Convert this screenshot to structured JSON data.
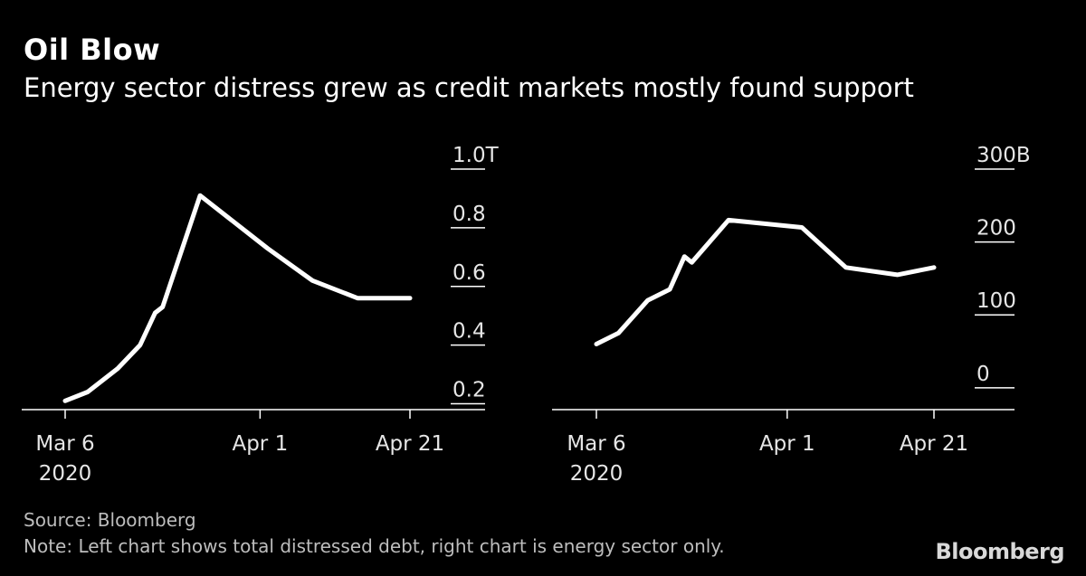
{
  "title": "Oil Blow",
  "subtitle": "Energy sector distress grew as credit markets mostly found support",
  "source": "Source: Bloomberg",
  "note": "Note: Left chart shows total distressed debt, right chart is energy sector only.",
  "logo": "Bloomberg",
  "colors": {
    "background": "#000000",
    "line": "#ffffff",
    "text": "#ffffff",
    "muted": "#bdbdbd"
  },
  "chart_data": [
    {
      "type": "line",
      "title": "",
      "xlabel": "",
      "ylabel": "",
      "grid": false,
      "y_axis_side": "right",
      "x_ticks": [
        {
          "date": "2020-03-06",
          "label": "Mar 6",
          "sublabel": "2020"
        },
        {
          "date": "2020-04-01",
          "label": "Apr 1",
          "sublabel": ""
        },
        {
          "date": "2020-04-21",
          "label": "Apr 21",
          "sublabel": ""
        }
      ],
      "y_ticks": [
        {
          "value": 0.2,
          "label": "0.2"
        },
        {
          "value": 0.4,
          "label": "0.4"
        },
        {
          "value": 0.6,
          "label": "0.6"
        },
        {
          "value": 0.8,
          "label": "0.8"
        },
        {
          "value": 1.0,
          "label": "1.0T"
        }
      ],
      "ylim": [
        0.18,
        1.0
      ],
      "xlim": [
        "2020-03-06",
        "2020-04-21"
      ],
      "series": [
        {
          "x": [
            "2020-03-06",
            "2020-03-09",
            "2020-03-13",
            "2020-03-16",
            "2020-03-18",
            "2020-03-19",
            "2020-03-24",
            "2020-04-02",
            "2020-04-08",
            "2020-04-14",
            "2020-04-21"
          ],
          "y": [
            0.21,
            0.24,
            0.32,
            0.4,
            0.51,
            0.53,
            0.91,
            0.73,
            0.62,
            0.56,
            0.56
          ]
        }
      ]
    },
    {
      "type": "line",
      "title": "",
      "xlabel": "",
      "ylabel": "",
      "grid": false,
      "y_axis_side": "right",
      "x_ticks": [
        {
          "date": "2020-03-06",
          "label": "Mar 6",
          "sublabel": "2020"
        },
        {
          "date": "2020-04-01",
          "label": "Apr 1",
          "sublabel": ""
        },
        {
          "date": "2020-04-21",
          "label": "Apr 21",
          "sublabel": ""
        }
      ],
      "y_ticks": [
        {
          "value": 0,
          "label": "0"
        },
        {
          "value": 100,
          "label": "100"
        },
        {
          "value": 200,
          "label": "200"
        },
        {
          "value": 300,
          "label": "300B"
        }
      ],
      "ylim": [
        -30,
        300
      ],
      "xlim": [
        "2020-03-06",
        "2020-04-21"
      ],
      "series": [
        {
          "x": [
            "2020-03-06",
            "2020-03-09",
            "2020-03-13",
            "2020-03-16",
            "2020-03-18",
            "2020-03-19",
            "2020-03-24",
            "2020-04-03",
            "2020-04-09",
            "2020-04-16",
            "2020-04-21"
          ],
          "y": [
            60,
            75,
            120,
            135,
            180,
            172,
            230,
            220,
            165,
            155,
            165
          ]
        }
      ]
    }
  ]
}
